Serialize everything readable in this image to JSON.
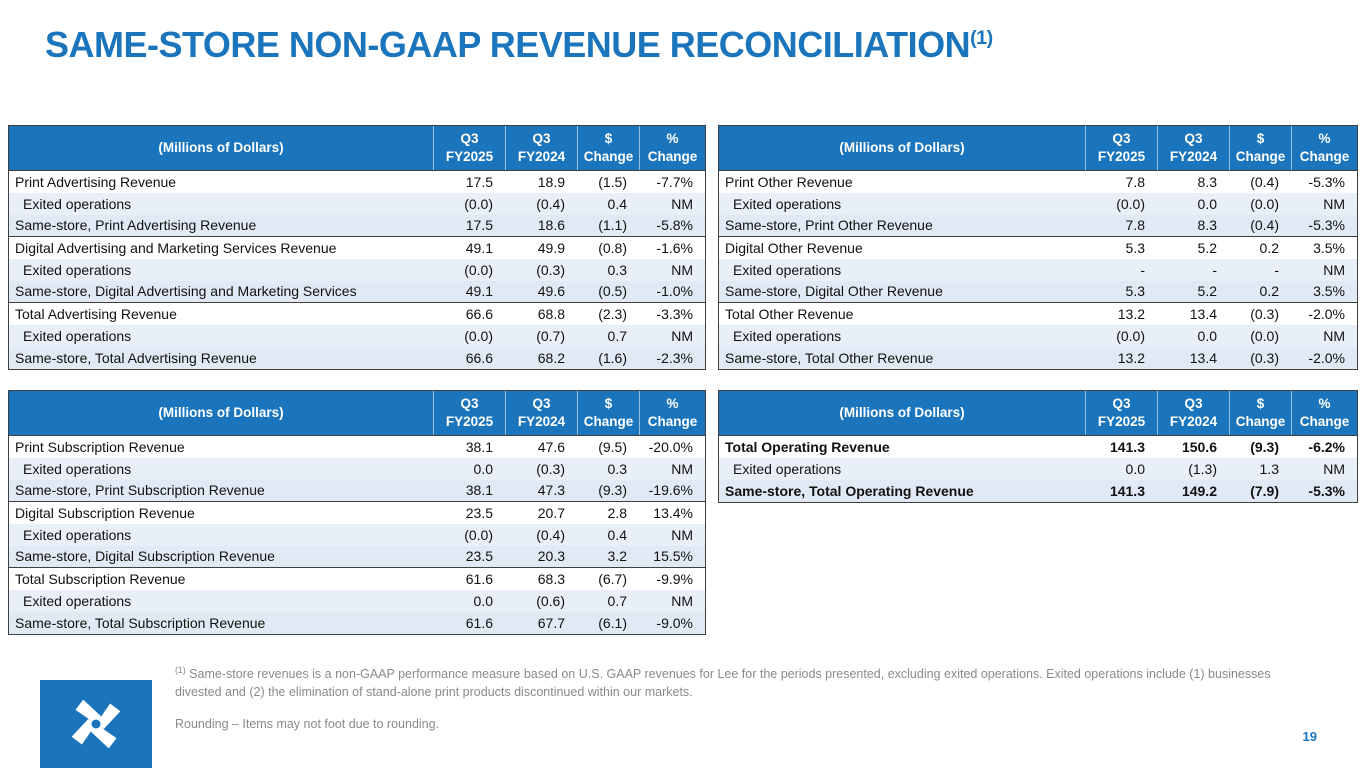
{
  "title": {
    "text": "SAME-STORE NON-GAAP REVENUE RECONCILIATION",
    "superscript": "(1)"
  },
  "colors": {
    "accent": "#1b75bc",
    "header_bg": "#1b75bc",
    "row_tint_exited": "#e9eff7",
    "row_tint_samestore": "#e1eaf4"
  },
  "header": {
    "label": "(Millions of Dollars)",
    "cols": [
      [
        "Q3",
        "FY2025"
      ],
      [
        "Q3",
        "FY2024"
      ],
      [
        "$",
        "Change"
      ],
      [
        "%",
        "Change"
      ]
    ]
  },
  "tables": [
    {
      "name": "advertising-revenue",
      "rows": [
        {
          "label": "Print Advertising Revenue",
          "values": [
            "17.5",
            "18.9",
            "(1.5)",
            "-7.7%"
          ],
          "type": "primary"
        },
        {
          "label": "Exited operations",
          "values": [
            "(0.0)",
            "(0.4)",
            "0.4",
            "NM"
          ],
          "type": "exited"
        },
        {
          "label": "Same-store, Print Advertising Revenue",
          "values": [
            "17.5",
            "18.6",
            "(1.1)",
            "-5.8%"
          ],
          "type": "samestore"
        },
        {
          "label": "Digital Advertising and Marketing Services Revenue",
          "values": [
            "49.1",
            "49.9",
            "(0.8)",
            "-1.6%"
          ],
          "type": "primary"
        },
        {
          "label": "Exited operations",
          "values": [
            "(0.0)",
            "(0.3)",
            "0.3",
            "NM"
          ],
          "type": "exited"
        },
        {
          "label": "Same-store, Digital Advertising and Marketing Services",
          "values": [
            "49.1",
            "49.6",
            "(0.5)",
            "-1.0%"
          ],
          "type": "samestore"
        },
        {
          "label": "Total Advertising Revenue",
          "values": [
            "66.6",
            "68.8",
            "(2.3)",
            "-3.3%"
          ],
          "type": "primary"
        },
        {
          "label": "Exited operations",
          "values": [
            "(0.0)",
            "(0.7)",
            "0.7",
            "NM"
          ],
          "type": "exited"
        },
        {
          "label": "Same-store, Total Advertising Revenue",
          "values": [
            "66.6",
            "68.2",
            "(1.6)",
            "-2.3%"
          ],
          "type": "samestore"
        }
      ]
    },
    {
      "name": "other-revenue",
      "rows": [
        {
          "label": "Print Other Revenue",
          "values": [
            "7.8",
            "8.3",
            "(0.4)",
            "-5.3%"
          ],
          "type": "primary"
        },
        {
          "label": "Exited operations",
          "values": [
            "(0.0)",
            "0.0",
            "(0.0)",
            "NM"
          ],
          "type": "exited"
        },
        {
          "label": "Same-store, Print Other Revenue",
          "values": [
            "7.8",
            "8.3",
            "(0.4)",
            "-5.3%"
          ],
          "type": "samestore"
        },
        {
          "label": "Digital Other Revenue",
          "values": [
            "5.3",
            "5.2",
            "0.2",
            "3.5%"
          ],
          "type": "primary"
        },
        {
          "label": "Exited operations",
          "values": [
            "-",
            "-",
            "-",
            "NM"
          ],
          "type": "exited"
        },
        {
          "label": "Same-store, Digital Other Revenue",
          "values": [
            "5.3",
            "5.2",
            "0.2",
            "3.5%"
          ],
          "type": "samestore"
        },
        {
          "label": "Total Other Revenue",
          "values": [
            "13.2",
            "13.4",
            "(0.3)",
            "-2.0%"
          ],
          "type": "primary"
        },
        {
          "label": "Exited operations",
          "values": [
            "(0.0)",
            "0.0",
            "(0.0)",
            "NM"
          ],
          "type": "exited"
        },
        {
          "label": "Same-store, Total Other Revenue",
          "values": [
            "13.2",
            "13.4",
            "(0.3)",
            "-2.0%"
          ],
          "type": "samestore"
        }
      ]
    },
    {
      "name": "subscription-revenue",
      "rows": [
        {
          "label": "Print Subscription Revenue",
          "values": [
            "38.1",
            "47.6",
            "(9.5)",
            "-20.0%"
          ],
          "type": "primary"
        },
        {
          "label": "Exited operations",
          "values": [
            "0.0",
            "(0.3)",
            "0.3",
            "NM"
          ],
          "type": "exited"
        },
        {
          "label": "Same-store, Print Subscription Revenue",
          "values": [
            "38.1",
            "47.3",
            "(9.3)",
            "-19.6%"
          ],
          "type": "samestore"
        },
        {
          "label": "Digital Subscription Revenue",
          "values": [
            "23.5",
            "20.7",
            "2.8",
            "13.4%"
          ],
          "type": "primary"
        },
        {
          "label": "Exited operations",
          "values": [
            "(0.0)",
            "(0.4)",
            "0.4",
            "NM"
          ],
          "type": "exited"
        },
        {
          "label": "Same-store, Digital Subscription Revenue",
          "values": [
            "23.5",
            "20.3",
            "3.2",
            "15.5%"
          ],
          "type": "samestore"
        },
        {
          "label": "Total Subscription Revenue",
          "values": [
            "61.6",
            "68.3",
            "(6.7)",
            "-9.9%"
          ],
          "type": "primary"
        },
        {
          "label": "Exited operations",
          "values": [
            "0.0",
            "(0.6)",
            "0.7",
            "NM"
          ],
          "type": "exited"
        },
        {
          "label": "Same-store, Total Subscription Revenue",
          "values": [
            "61.6",
            "67.7",
            "(6.1)",
            "-9.0%"
          ],
          "type": "samestore"
        }
      ]
    },
    {
      "name": "total-operating-revenue",
      "rows": [
        {
          "label": "Total Operating Revenue",
          "values": [
            "141.3",
            "150.6",
            "(9.3)",
            "-6.2%"
          ],
          "type": "primary",
          "bold": true
        },
        {
          "label": "Exited operations",
          "values": [
            "0.0",
            "(1.3)",
            "1.3",
            "NM"
          ],
          "type": "exited"
        },
        {
          "label": "Same-store, Total Operating Revenue",
          "values": [
            "141.3",
            "149.2",
            "(7.9)",
            "-5.3%"
          ],
          "type": "samestore",
          "bold": true
        }
      ]
    }
  ],
  "footnote": {
    "marker": "(1)",
    "text": " Same-store revenues is a non-GAAP performance measure based on U.S. GAAP revenues for Lee for the periods presented, excluding exited operations. Exited operations include (1) businesses divested and (2) the elimination of stand-alone print products discontinued within our markets.",
    "rounding": "Rounding – Items may not foot due to rounding."
  },
  "logo_name": "lee-enterprises-logo",
  "page_number": "19"
}
